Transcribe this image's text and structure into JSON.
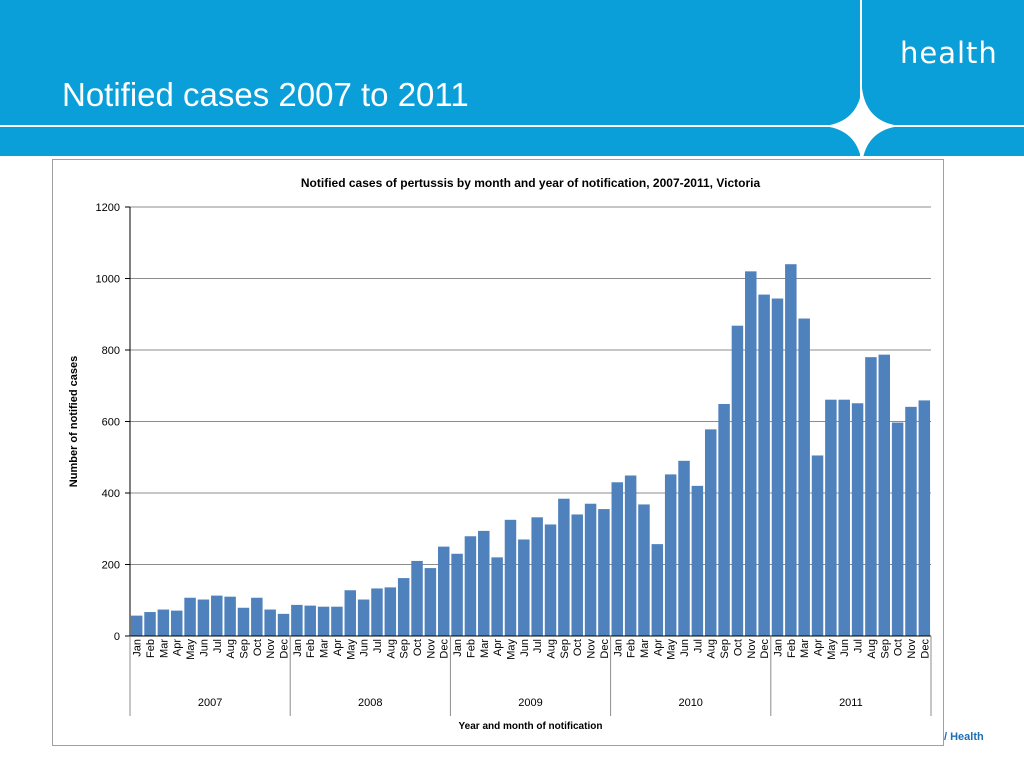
{
  "slide": {
    "title": "Notified cases 2007 to 2011",
    "brand": "health",
    "footer_brand": "/ Health"
  },
  "colors": {
    "banner": "#0a9fd8",
    "bar": "#4f81bd",
    "grid": "#8c8c8c",
    "footer": "#1f6fb5"
  },
  "chart_data": {
    "type": "bar",
    "title": "Notified cases of pertussis by month and year of notification, 2007-2011, Victoria",
    "xlabel": "Year and  month of notification",
    "ylabel": "Number of notified cases",
    "ylim": [
      0,
      1200
    ],
    "yticks": [
      "0",
      "200",
      "400",
      "600",
      "800",
      "1000",
      "1200"
    ],
    "grid": true,
    "legend": "none",
    "months": [
      "Jan",
      "Feb",
      "Mar",
      "Apr",
      "May",
      "Jun",
      "Jul",
      "Aug",
      "Sep",
      "Oct",
      "Nov",
      "Dec"
    ],
    "years": [
      "2007",
      "2008",
      "2009",
      "2010",
      "2011"
    ],
    "values": [
      57,
      67,
      74,
      71,
      107,
      102,
      113,
      110,
      79,
      107,
      74,
      62,
      87,
      85,
      82,
      82,
      128,
      102,
      133,
      136,
      162,
      210,
      190,
      250,
      230,
      279,
      294,
      220,
      325,
      270,
      332,
      312,
      384,
      340,
      370,
      355,
      430,
      449,
      368,
      257,
      452,
      490,
      420,
      578,
      649,
      868,
      1020,
      955,
      944,
      1040,
      888,
      505,
      661,
      661,
      651,
      780,
      787,
      597,
      641,
      659
    ]
  }
}
